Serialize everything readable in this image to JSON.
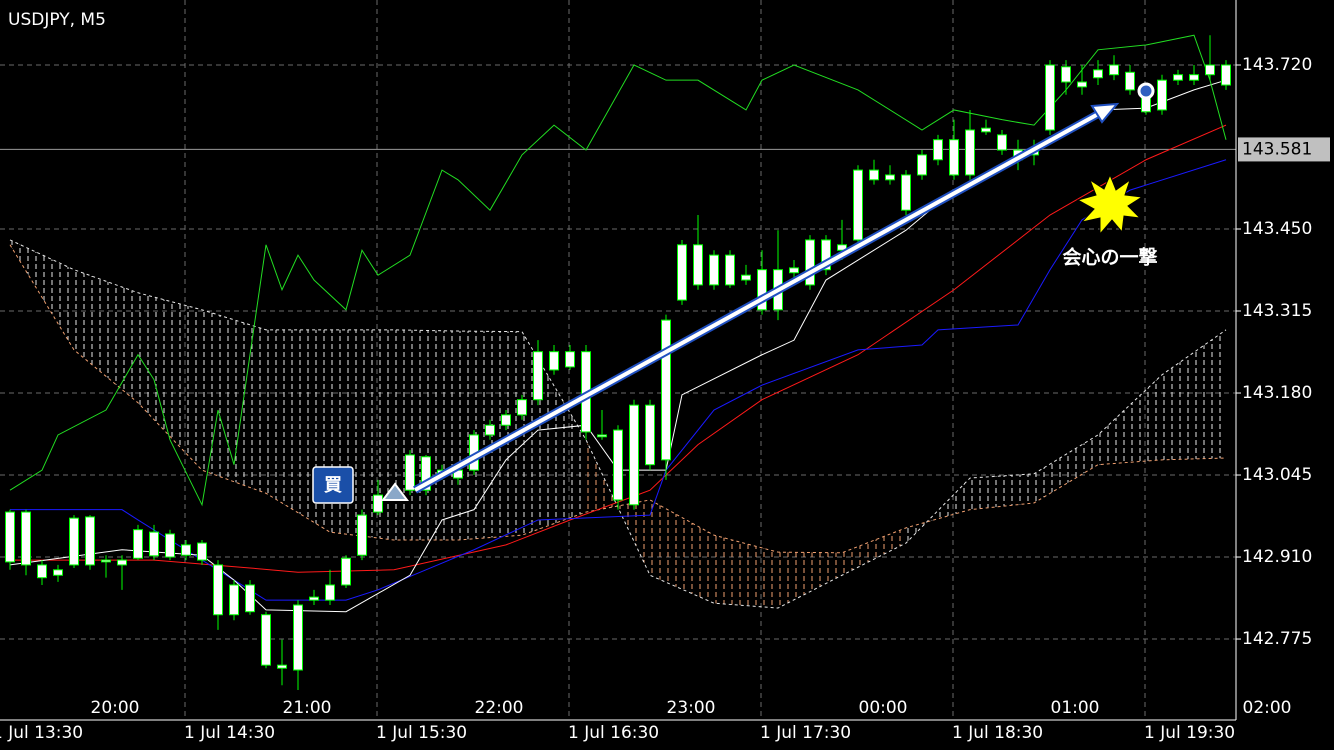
{
  "chart_data": {
    "type": "candlestick",
    "title": "USDJPY, M5",
    "ylim": [
      142.645,
      143.827
    ],
    "yticks": [
      {
        "value": 143.72,
        "label": "143.720"
      },
      {
        "value": 143.45,
        "label": "143.450"
      },
      143.315,
      {
        "value": 143.18,
        "label": "143.180"
      },
      143.045,
      {
        "value": 142.91,
        "label": "142.910"
      },
      142.775
    ],
    "grid": true,
    "current_price": 143.581,
    "x_labels_top": [
      "20:00",
      "21:00",
      "22:00",
      "23:00",
      "00:00",
      "01:00",
      "02:00"
    ],
    "x_labels_bottom": [
      "1 Jul 13:30",
      "1 Jul 14:30",
      "1 Jul 15:30",
      "1 Jul 16:30",
      "1 Jul 17:30",
      "1 Jul 18:30",
      "1 Jul 19:30"
    ],
    "candle_color": "#00ff00",
    "body_color": "#ffffff",
    "candles": {
      "open": [
        142.984,
        142.984,
        142.897,
        142.889,
        142.897,
        142.976,
        142.905,
        142.905,
        142.955,
        142.951,
        142.948,
        142.93,
        142.933,
        142.897,
        142.864,
        142.864,
        142.815,
        142.732,
        142.724,
        142.839,
        142.839,
        142.864,
        142.913,
        142.984,
        143.012,
        143.02,
        143.075,
        143.045,
        143.04,
        143.053,
        143.111,
        143.127,
        143.144,
        143.169,
        143.248,
        143.223,
        143.248,
        143.111,
        143.119,
        142.996,
        143.16,
        143.07,
        143.333,
        143.424,
        143.358,
        143.407,
        143.374,
        143.383,
        143.317,
        143.378,
        143.358,
        143.432,
        143.415,
        143.432,
        143.547,
        143.539,
        143.481,
        143.539,
        143.564,
        143.597,
        143.539,
        143.616,
        143.58,
        143.58,
        143.572,
        143.613,
        143.717,
        143.692,
        143.699,
        143.704,
        143.708,
        143.676,
        143.646,
        143.695,
        143.695,
        143.704,
        143.72
      ],
      "high": [
        142.988,
        142.988,
        142.905,
        142.897,
        142.979,
        142.979,
        142.913,
        142.913,
        142.963,
        142.963,
        142.955,
        142.938,
        142.938,
        142.905,
        142.872,
        142.872,
        142.82,
        142.774,
        142.839,
        142.856,
        142.889,
        142.913,
        142.988,
        143.037,
        143.029,
        143.086,
        143.078,
        143.062,
        143.062,
        143.119,
        143.136,
        143.152,
        143.177,
        143.267,
        143.259,
        143.259,
        143.259,
        143.152,
        143.127,
        143.169,
        143.169,
        143.309,
        143.432,
        143.473,
        143.415,
        143.415,
        143.391,
        143.415,
        143.448,
        143.399,
        143.44,
        143.44,
        143.465,
        143.555,
        143.564,
        143.555,
        143.547,
        143.58,
        143.605,
        143.63,
        143.646,
        143.63,
        143.613,
        143.597,
        143.597,
        143.728,
        143.728,
        143.72,
        143.728,
        143.736,
        143.72,
        143.687,
        143.704,
        143.712,
        143.72,
        143.769,
        143.728
      ],
      "low": [
        142.889,
        142.88,
        142.864,
        142.869,
        142.892,
        142.889,
        142.876,
        142.856,
        142.905,
        142.905,
        142.905,
        142.905,
        142.897,
        142.79,
        142.806,
        142.815,
        142.727,
        142.699,
        142.691,
        142.831,
        142.831,
        142.859,
        142.905,
        142.979,
        143.004,
        143.012,
        143.012,
        143.037,
        143.029,
        143.045,
        143.103,
        143.119,
        143.136,
        143.16,
        143.21,
        143.218,
        143.103,
        143.103,
        142.988,
        142.988,
        143.053,
        143.037,
        143.325,
        143.35,
        143.35,
        143.353,
        143.358,
        143.309,
        143.3,
        143.366,
        143.35,
        143.374,
        143.399,
        143.424,
        143.523,
        143.523,
        143.473,
        143.531,
        143.555,
        143.531,
        143.531,
        143.605,
        143.572,
        143.547,
        143.555,
        143.605,
        143.671,
        143.671,
        143.687,
        143.695,
        143.671,
        143.638,
        143.638,
        143.687,
        143.687,
        143.695,
        143.679
      ],
      "close": [
        142.902,
        142.897,
        142.876,
        142.88,
        142.974,
        142.897,
        142.902,
        142.897,
        142.908,
        142.912,
        142.91,
        142.913,
        142.905,
        142.815,
        142.815,
        142.82,
        142.732,
        142.727,
        142.831,
        142.844,
        142.864,
        142.908,
        142.979,
        143.012,
        143.02,
        143.078,
        143.02,
        143.053,
        143.053,
        143.111,
        143.127,
        143.144,
        143.169,
        143.248,
        143.218,
        143.248,
        143.116,
        143.108,
        143.004,
        143.16,
        143.062,
        143.3,
        143.424,
        143.358,
        143.407,
        143.358,
        143.366,
        143.317,
        143.383,
        143.386,
        143.432,
        143.383,
        143.424,
        143.547,
        143.531,
        143.531,
        143.539,
        143.572,
        143.597,
        143.539,
        143.613,
        143.61,
        143.605,
        143.564,
        143.58,
        143.72,
        143.692,
        143.684,
        143.712,
        143.72,
        143.679,
        143.643,
        143.695,
        143.704,
        143.704,
        143.72,
        143.687
      ]
    },
    "lines": [
      {
        "color": "#ff1a1a",
        "x": [
          0,
          9,
          15,
          18,
          24,
          31,
          35,
          40,
          43,
          47,
          53,
          59,
          65,
          71,
          76
        ],
        "values": [
          142.905,
          142.905,
          142.892,
          142.885,
          142.889,
          142.93,
          142.971,
          143.02,
          143.095,
          143.169,
          143.243,
          143.35,
          143.473,
          143.564,
          143.621
        ]
      },
      {
        "color": "#1a1aff",
        "x": [
          0,
          7,
          8,
          12,
          14,
          16,
          21,
          23,
          26,
          29,
          33,
          40,
          41,
          44,
          47,
          53,
          57,
          58,
          63,
          65,
          67,
          70,
          76
        ],
        "values": [
          142.988,
          142.988,
          142.971,
          142.905,
          142.872,
          142.839,
          142.839,
          142.856,
          142.889,
          142.922,
          142.971,
          142.979,
          143.053,
          143.152,
          143.193,
          143.251,
          143.259,
          143.284,
          143.292,
          143.383,
          143.465,
          143.514,
          143.564
        ]
      },
      {
        "color": "#ffffff",
        "x": [
          0,
          7,
          12,
          14,
          16,
          21,
          25,
          27,
          29,
          31,
          33,
          36,
          38,
          41,
          42,
          47,
          49,
          51,
          56,
          59,
          63,
          66,
          68,
          71,
          74,
          76
        ],
        "values": [
          142.897,
          142.922,
          142.913,
          142.872,
          142.823,
          142.82,
          142.88,
          142.971,
          142.988,
          143.07,
          143.119,
          143.127,
          143.053,
          143.053,
          143.177,
          143.243,
          143.267,
          143.366,
          143.448,
          143.514,
          143.564,
          143.613,
          143.646,
          143.649,
          143.679,
          143.695
        ]
      },
      {
        "color": "#22dd22",
        "x": [
          0,
          2,
          3,
          6,
          8,
          9,
          10,
          12,
          13,
          14,
          16,
          17,
          18,
          19,
          21,
          22,
          23,
          25,
          27,
          28,
          30,
          32,
          34,
          36,
          39,
          41,
          43,
          46,
          47,
          49,
          53,
          57,
          59,
          62,
          64,
          66,
          68,
          71,
          74,
          75,
          76
        ],
        "values": [
          143.02,
          143.053,
          143.111,
          143.152,
          143.243,
          143.202,
          143.103,
          142.996,
          143.152,
          143.062,
          143.424,
          143.35,
          143.407,
          143.366,
          143.317,
          143.415,
          143.374,
          143.407,
          143.547,
          143.531,
          143.481,
          143.572,
          143.621,
          143.58,
          143.72,
          143.695,
          143.695,
          143.646,
          143.695,
          143.72,
          143.679,
          143.613,
          143.646,
          143.63,
          143.621,
          143.679,
          143.745,
          143.753,
          143.769,
          143.695,
          143.597
        ]
      }
    ],
    "cloud": {
      "x": [
        0,
        4,
        8,
        12,
        16,
        20,
        24,
        28,
        32,
        36,
        40,
        44,
        48,
        52,
        56,
        60,
        64,
        68,
        72,
        76
      ],
      "span_a": [
        143.432,
        143.383,
        143.345,
        143.317,
        143.284,
        143.284,
        143.284,
        143.282,
        143.281,
        143.103,
        142.88,
        142.834,
        142.826,
        142.88,
        142.933,
        143.04,
        143.047,
        143.111,
        143.21,
        143.284
      ],
      "span_b": [
        143.424,
        143.251,
        143.164,
        143.053,
        143.015,
        142.951,
        142.938,
        142.938,
        142.946,
        142.984,
        143.004,
        142.946,
        142.918,
        142.917,
        142.958,
        142.988,
        142.999,
        143.062,
        143.07,
        143.073
      ],
      "color_a": "#e8e8e8",
      "color_b": "#f0a070"
    },
    "buy_label": "買",
    "annotation": "会心の一撃"
  }
}
